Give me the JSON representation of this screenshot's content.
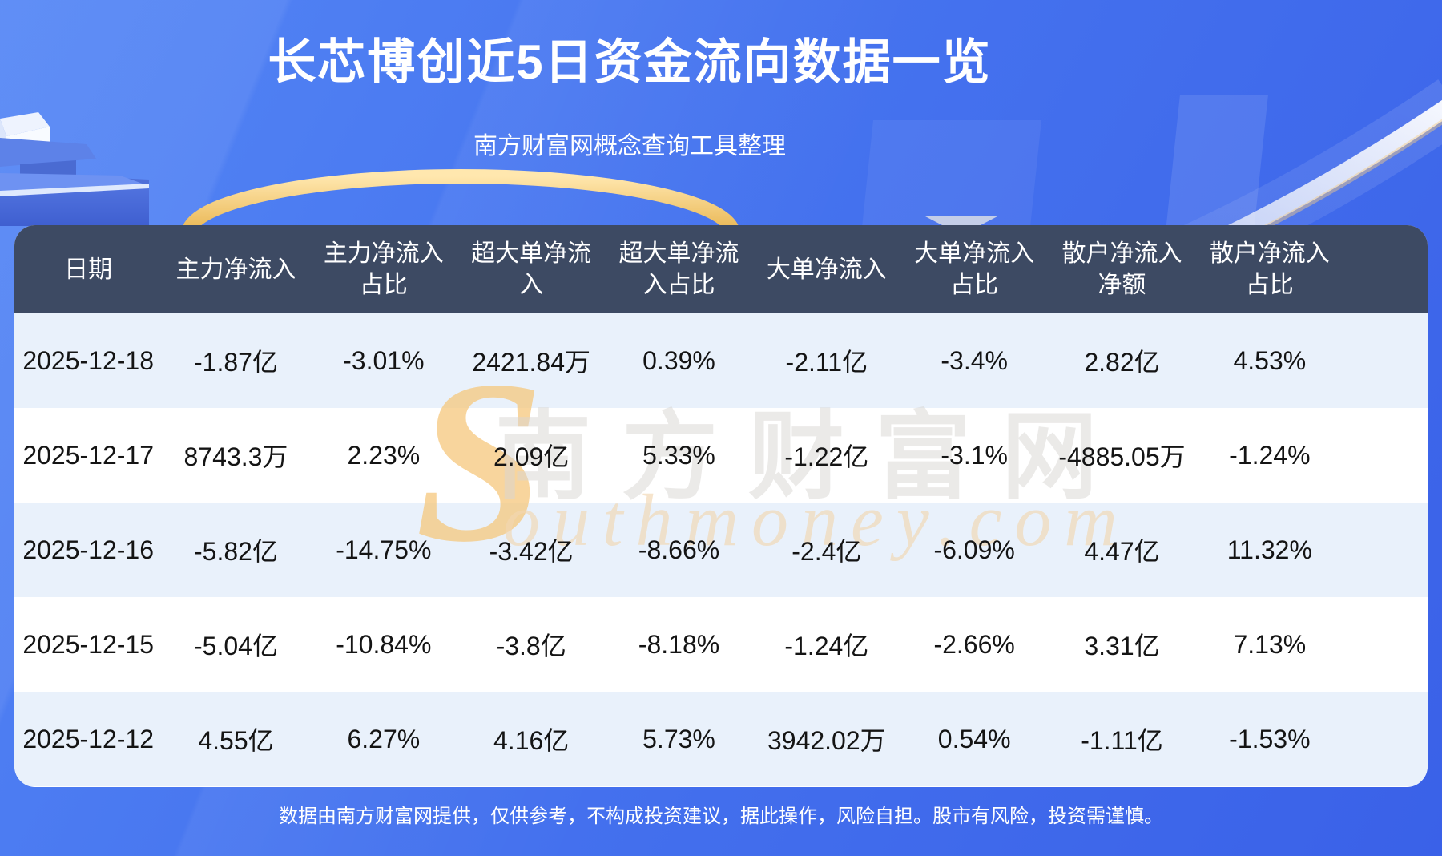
{
  "header": {
    "title": "长芯博创近5日资金流向数据一览",
    "subtitle": "南方财富网概念查询工具整理"
  },
  "footer": {
    "disclaimer": "数据由南方财富网提供，仅供参考，不构成投资建议，据此操作，风险自担。股市有风险，投资需谨慎。"
  },
  "watermark": {
    "s_glyph": "S",
    "en": "outhmoney.com",
    "cn": "南方财富网"
  },
  "colors": {
    "background_blue": "#4674ef",
    "header_bg": "#3d4a63",
    "row_stripe": "#e9f1fb",
    "row_plain": "#ffffff",
    "accent_gold": "#f0c26a",
    "text_dark": "#141414",
    "text_light": "#ffffff"
  },
  "chart_data": {
    "type": "table",
    "title": "长芯博创近5日资金流向数据一览",
    "subtitle": "南方财富网概念查询工具整理",
    "columns": [
      "日期",
      "主力净流入",
      "主力净流入占比",
      "超大单净流入",
      "超大单净流入占比",
      "大单净流入",
      "大单净流入占比",
      "散户净流入净额",
      "散户净流入占比"
    ],
    "rows": [
      [
        "2025-12-18",
        "-1.87亿",
        "-3.01%",
        "2421.84万",
        "0.39%",
        "-2.11亿",
        "-3.4%",
        "2.82亿",
        "4.53%"
      ],
      [
        "2025-12-17",
        "8743.3万",
        "2.23%",
        "2.09亿",
        "5.33%",
        "-1.22亿",
        "-3.1%",
        "-4885.05万",
        "-1.24%"
      ],
      [
        "2025-12-16",
        "-5.82亿",
        "-14.75%",
        "-3.42亿",
        "-8.66%",
        "-2.4亿",
        "-6.09%",
        "4.47亿",
        "11.32%"
      ],
      [
        "2025-12-15",
        "-5.04亿",
        "-10.84%",
        "-3.8亿",
        "-8.18%",
        "-1.24亿",
        "-2.66%",
        "3.31亿",
        "7.13%"
      ],
      [
        "2025-12-12",
        "4.55亿",
        "6.27%",
        "4.16亿",
        "5.73%",
        "3942.02万",
        "0.54%",
        "-1.11亿",
        "-1.53%"
      ]
    ]
  }
}
